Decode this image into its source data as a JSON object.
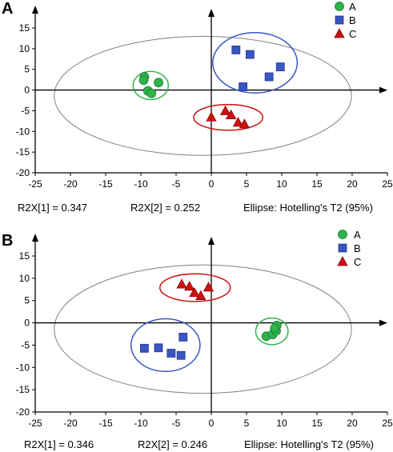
{
  "chart_data": [
    {
      "type": "scatter",
      "panel_label": "A",
      "xlim": [
        -25,
        25
      ],
      "ylim": [
        -20,
        15
      ],
      "x_ticks": [
        -25,
        -20,
        -15,
        -10,
        -5,
        0,
        5,
        10,
        15,
        20,
        25
      ],
      "y_ticks": [
        15,
        10,
        5,
        0,
        -5,
        -10,
        -15,
        -20
      ],
      "grid": false,
      "legend_position": "top-right",
      "series": [
        {
          "name": "A",
          "marker": "circle",
          "color": "#2db34a",
          "points": [
            [
              -9.5,
              3.2
            ],
            [
              -7.5,
              1.8
            ],
            [
              -9,
              -0.2
            ],
            [
              -8.5,
              -0.8
            ],
            [
              -9.6,
              2.4
            ]
          ]
        },
        {
          "name": "B",
          "marker": "square",
          "color": "#3a56c4",
          "points": [
            [
              3.5,
              9.7
            ],
            [
              5.5,
              8.6
            ],
            [
              9.8,
              5.6
            ],
            [
              8.2,
              3.2
            ],
            [
              4.5,
              0.8
            ]
          ]
        },
        {
          "name": "C",
          "marker": "triangle",
          "color": "#cc1111",
          "points": [
            [
              0,
              -6.5
            ],
            [
              2,
              -5
            ],
            [
              2.8,
              -6
            ],
            [
              3.8,
              -7.8
            ],
            [
              4.7,
              -8.2
            ]
          ]
        }
      ],
      "group_ellipses": [
        {
          "group": "A",
          "color": "#2db34a",
          "cx": -8.6,
          "cy": 1.1,
          "rx": 2.5,
          "ry": 3.4
        },
        {
          "group": "B",
          "color": "#3a56c4",
          "cx": 6.2,
          "cy": 6.6,
          "rx": 6.0,
          "ry": 7.3
        },
        {
          "group": "C",
          "color": "#cc1111",
          "cx": 2.4,
          "cy": -6.6,
          "rx": 4.9,
          "ry": 3.1
        }
      ],
      "hotelling_ellipse": {
        "cx": -1.2,
        "cy": -1.4,
        "rx": 21.1,
        "ry": 14.4,
        "color": "#808080"
      },
      "footer": {
        "r2x1": "R2X[1] = 0.347",
        "r2x2": "R2X[2] = 0.252",
        "ellipse": "Ellipse: Hotelling's T2 (95%)"
      }
    },
    {
      "type": "scatter",
      "panel_label": "B",
      "xlim": [
        -25,
        25
      ],
      "ylim": [
        -20,
        15
      ],
      "x_ticks": [
        -25,
        -20,
        -15,
        -10,
        -5,
        0,
        5,
        10,
        15,
        20,
        25
      ],
      "y_ticks": [
        15,
        10,
        5,
        0,
        -5,
        -10,
        -15,
        -20
      ],
      "grid": false,
      "legend_position": "top-right",
      "series": [
        {
          "name": "A",
          "marker": "circle",
          "color": "#2db34a",
          "points": [
            [
              7.8,
              -3
            ],
            [
              8.7,
              -2.6
            ],
            [
              9.2,
              -1.8
            ],
            [
              9.3,
              -0.6
            ],
            [
              9.0,
              -1.2
            ]
          ]
        },
        {
          "name": "B",
          "marker": "square",
          "color": "#3a56c4",
          "points": [
            [
              -9.5,
              -5.7
            ],
            [
              -7.5,
              -5.6
            ],
            [
              -5.7,
              -6.8
            ],
            [
              -4.3,
              -7.3
            ],
            [
              -4.0,
              -3.2
            ]
          ]
        },
        {
          "name": "C",
          "marker": "triangle",
          "color": "#cc1111",
          "points": [
            [
              -4.2,
              8.7
            ],
            [
              -3.1,
              8.2
            ],
            [
              -2.4,
              6.8
            ],
            [
              -1.5,
              6.1
            ],
            [
              -0.4,
              8.0
            ]
          ]
        }
      ],
      "group_ellipses": [
        {
          "group": "A",
          "color": "#2db34a",
          "cx": 8.6,
          "cy": -1.9,
          "rx": 2.3,
          "ry": 3.0
        },
        {
          "group": "B",
          "color": "#3a56c4",
          "cx": -6.5,
          "cy": -5.0,
          "rx": 4.9,
          "ry": 5.9
        },
        {
          "group": "C",
          "color": "#cc1111",
          "cx": -2.3,
          "cy": 7.9,
          "rx": 5.0,
          "ry": 3.1
        }
      ],
      "hotelling_ellipse": {
        "cx": -1.2,
        "cy": -1.4,
        "rx": 21.1,
        "ry": 14.4,
        "color": "#808080"
      },
      "footer": {
        "r2x1": "R2X[1] = 0.346",
        "r2x2": "R2X[2] = 0.246",
        "ellipse": "Ellipse: Hotelling's T2 (95%)"
      }
    }
  ]
}
